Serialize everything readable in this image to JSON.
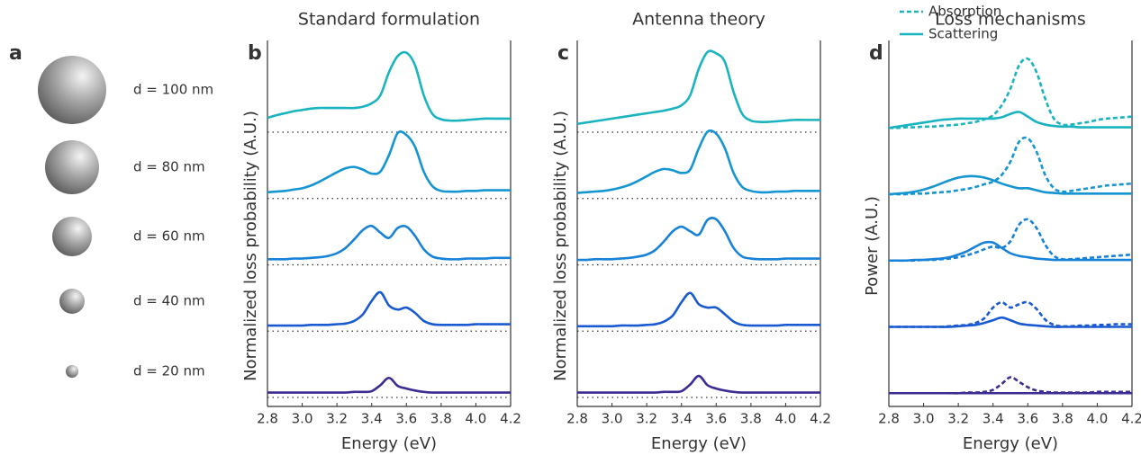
{
  "spheres": {
    "label": "a",
    "items": [
      "d = 100 nm",
      "d = 80 nm",
      "d = 60 nm",
      "d = 40 nm",
      "d = 20 nm"
    ]
  },
  "chart_data": [
    {
      "type": "line",
      "panel_label": "b",
      "title": "Standard formulation",
      "xlabel": "Energy (eV)",
      "ylabel": "Normalized loss probability (A.U.)",
      "xlim": [
        2.8,
        4.2
      ],
      "xticks": [
        2.8,
        {
          "value": 3,
          "label": "3.0"
        },
        3.2,
        3.4,
        3.6,
        3.8,
        {
          "value": 4,
          "label": "4.0"
        },
        4.2
      ],
      "dotted_baselines": true,
      "x": [
        2.8,
        2.85,
        2.9,
        2.95,
        3.0,
        3.05,
        3.1,
        3.15,
        3.2,
        3.25,
        3.3,
        3.35,
        3.4,
        3.45,
        3.5,
        3.55,
        3.6,
        3.65,
        3.7,
        3.75,
        3.8,
        3.85,
        3.9,
        3.95,
        4.0,
        4.05,
        4.1,
        4.15,
        4.2
      ],
      "series": [
        {
          "color": "#3b2d91",
          "dash": false,
          "values": [
            0.02,
            0.02,
            0.02,
            0.02,
            0.02,
            0.02,
            0.02,
            0.02,
            0.02,
            0.02,
            0.03,
            0.03,
            0.04,
            0.13,
            0.24,
            0.12,
            0.08,
            0.05,
            0.03,
            0.02,
            0.02,
            0.02,
            0.02,
            0.02,
            0.02,
            0.02,
            0.02,
            0.02,
            0.02
          ]
        },
        {
          "color": "#1a5ad1",
          "dash": false,
          "values": [
            0.03,
            0.03,
            0.03,
            0.03,
            0.03,
            0.04,
            0.04,
            0.04,
            0.05,
            0.06,
            0.1,
            0.2,
            0.4,
            0.53,
            0.33,
            0.27,
            0.3,
            0.22,
            0.1,
            0.05,
            0.04,
            0.04,
            0.04,
            0.04,
            0.05,
            0.05,
            0.05,
            0.05,
            0.05
          ]
        },
        {
          "color": "#1782d8",
          "dash": false,
          "values": [
            0.03,
            0.03,
            0.03,
            0.04,
            0.04,
            0.05,
            0.06,
            0.08,
            0.12,
            0.2,
            0.33,
            0.47,
            0.53,
            0.43,
            0.35,
            0.5,
            0.52,
            0.38,
            0.18,
            0.07,
            0.04,
            0.03,
            0.03,
            0.04,
            0.04,
            0.04,
            0.05,
            0.05,
            0.05
          ]
        },
        {
          "color": "#1595d1",
          "dash": false,
          "values": [
            0.04,
            0.05,
            0.06,
            0.08,
            0.1,
            0.14,
            0.2,
            0.27,
            0.34,
            0.4,
            0.42,
            0.38,
            0.32,
            0.35,
            0.6,
            0.93,
            0.9,
            0.72,
            0.35,
            0.13,
            0.06,
            0.05,
            0.05,
            0.06,
            0.06,
            0.07,
            0.07,
            0.07,
            0.07
          ]
        },
        {
          "color": "#19b4bf",
          "dash": false,
          "values": [
            0.16,
            0.2,
            0.23,
            0.26,
            0.28,
            0.3,
            0.31,
            0.31,
            0.31,
            0.31,
            0.31,
            0.33,
            0.38,
            0.5,
            0.85,
            1.09,
            1.14,
            0.95,
            0.5,
            0.22,
            0.14,
            0.12,
            0.12,
            0.13,
            0.14,
            0.15,
            0.15,
            0.15,
            0.15
          ]
        }
      ]
    },
    {
      "type": "line",
      "panel_label": "c",
      "title": "Antenna theory",
      "xlabel": "Energy (eV)",
      "ylabel": "Normalized loss probability (A.U.)",
      "xlim": [
        2.8,
        4.2
      ],
      "xticks": [
        2.8,
        {
          "value": 3,
          "label": "3.0"
        },
        3.2,
        3.4,
        3.6,
        3.8,
        {
          "value": 4,
          "label": "4.0"
        },
        4.2
      ],
      "dotted_baselines": true,
      "x": [
        2.8,
        2.85,
        2.9,
        2.95,
        3.0,
        3.05,
        3.1,
        3.15,
        3.2,
        3.25,
        3.3,
        3.35,
        3.4,
        3.45,
        3.5,
        3.55,
        3.6,
        3.65,
        3.7,
        3.75,
        3.8,
        3.85,
        3.9,
        3.95,
        4.0,
        4.05,
        4.1,
        4.15,
        4.2
      ],
      "series": [
        {
          "color": "#3b2d91",
          "dash": false,
          "values": [
            0.02,
            0.02,
            0.02,
            0.02,
            0.02,
            0.02,
            0.02,
            0.02,
            0.02,
            0.02,
            0.03,
            0.03,
            0.04,
            0.14,
            0.27,
            0.13,
            0.08,
            0.05,
            0.03,
            0.02,
            0.02,
            0.02,
            0.02,
            0.02,
            0.02,
            0.02,
            0.02,
            0.02,
            0.02
          ]
        },
        {
          "color": "#1a5ad1",
          "dash": false,
          "values": [
            0.02,
            0.02,
            0.02,
            0.02,
            0.02,
            0.03,
            0.03,
            0.03,
            0.04,
            0.05,
            0.09,
            0.18,
            0.38,
            0.52,
            0.35,
            0.3,
            0.3,
            0.2,
            0.09,
            0.04,
            0.03,
            0.03,
            0.03,
            0.03,
            0.04,
            0.04,
            0.04,
            0.04,
            0.04
          ]
        },
        {
          "color": "#1782d8",
          "dash": false,
          "values": [
            0.02,
            0.02,
            0.03,
            0.03,
            0.03,
            0.04,
            0.05,
            0.07,
            0.1,
            0.17,
            0.3,
            0.45,
            0.52,
            0.45,
            0.4,
            0.62,
            0.63,
            0.45,
            0.2,
            0.07,
            0.04,
            0.03,
            0.03,
            0.03,
            0.04,
            0.04,
            0.04,
            0.04,
            0.04
          ]
        },
        {
          "color": "#1595d1",
          "dash": false,
          "values": [
            0.03,
            0.04,
            0.05,
            0.06,
            0.08,
            0.11,
            0.15,
            0.21,
            0.28,
            0.35,
            0.39,
            0.37,
            0.33,
            0.38,
            0.7,
            0.95,
            0.92,
            0.7,
            0.33,
            0.12,
            0.06,
            0.04,
            0.04,
            0.05,
            0.05,
            0.06,
            0.06,
            0.06,
            0.06
          ]
        },
        {
          "color": "#19b4bf",
          "dash": false,
          "values": [
            0.07,
            0.09,
            0.11,
            0.13,
            0.15,
            0.17,
            0.19,
            0.21,
            0.23,
            0.25,
            0.27,
            0.3,
            0.35,
            0.5,
            0.9,
            1.15,
            1.13,
            1.0,
            0.55,
            0.22,
            0.12,
            0.1,
            0.1,
            0.11,
            0.12,
            0.13,
            0.13,
            0.13,
            0.13
          ]
        }
      ]
    },
    {
      "type": "line",
      "panel_label": "d",
      "title": "Loss mechanisms",
      "xlabel": "Energy (eV)",
      "ylabel": "Power (A.U.)",
      "xlim": [
        2.8,
        4.2
      ],
      "xticks": [
        2.8,
        {
          "value": 3,
          "label": "3.0"
        },
        3.2,
        3.4,
        3.6,
        3.8,
        {
          "value": 4,
          "label": "4.0"
        },
        4.2
      ],
      "dotted_baselines": false,
      "legend": [
        {
          "name": "Absorption",
          "color": "#19b4bf",
          "dash": true
        },
        {
          "name": "Scattering",
          "color": "#19b4bf",
          "dash": false
        }
      ],
      "x": [
        2.8,
        2.85,
        2.9,
        2.95,
        3.0,
        3.05,
        3.1,
        3.15,
        3.2,
        3.25,
        3.3,
        3.35,
        3.4,
        3.45,
        3.5,
        3.55,
        3.6,
        3.65,
        3.7,
        3.75,
        3.8,
        3.85,
        3.9,
        3.95,
        4.0,
        4.05,
        4.1,
        4.15,
        4.2
      ],
      "series": [
        {
          "color": "#3b2d91",
          "dash": true,
          "values": [
            0.01,
            0.01,
            0.01,
            0.01,
            0.01,
            0.01,
            0.01,
            0.01,
            0.01,
            0.02,
            0.02,
            0.03,
            0.06,
            0.15,
            0.25,
            0.18,
            0.1,
            0.05,
            0.03,
            0.02,
            0.02,
            0.02,
            0.02,
            0.02,
            0.03,
            0.03,
            0.03,
            0.03,
            0.03
          ]
        },
        {
          "color": "#1a5ad1",
          "dash": true,
          "values": [
            0.01,
            0.01,
            0.01,
            0.01,
            0.01,
            0.01,
            0.01,
            0.02,
            0.03,
            0.04,
            0.07,
            0.14,
            0.3,
            0.38,
            0.3,
            0.35,
            0.38,
            0.28,
            0.12,
            0.04,
            0.02,
            0.02,
            0.03,
            0.03,
            0.04,
            0.04,
            0.05,
            0.05,
            0.05
          ]
        },
        {
          "color": "#1782d8",
          "dash": true,
          "values": [
            0.01,
            0.01,
            0.01,
            0.01,
            0.02,
            0.02,
            0.03,
            0.04,
            0.06,
            0.09,
            0.13,
            0.18,
            0.22,
            0.2,
            0.3,
            0.55,
            0.63,
            0.5,
            0.25,
            0.08,
            0.03,
            0.03,
            0.04,
            0.05,
            0.06,
            0.07,
            0.08,
            0.09,
            0.1
          ]
        },
        {
          "color": "#1595d1",
          "dash": true,
          "values": [
            0.01,
            0.01,
            0.01,
            0.02,
            0.02,
            0.03,
            0.04,
            0.05,
            0.07,
            0.09,
            0.12,
            0.16,
            0.2,
            0.3,
            0.5,
            0.8,
            0.85,
            0.65,
            0.3,
            0.1,
            0.05,
            0.06,
            0.08,
            0.1,
            0.12,
            0.14,
            0.15,
            0.16,
            0.17
          ]
        },
        {
          "color": "#19b4bf",
          "dash": true,
          "values": [
            0.01,
            0.01,
            0.02,
            0.02,
            0.03,
            0.03,
            0.04,
            0.05,
            0.06,
            0.08,
            0.1,
            0.14,
            0.2,
            0.35,
            0.6,
            0.95,
            1.05,
            0.85,
            0.45,
            0.15,
            0.06,
            0.06,
            0.08,
            0.1,
            0.13,
            0.15,
            0.16,
            0.17,
            0.18
          ]
        },
        {
          "color": "#3b2d91",
          "dash": false,
          "values": [
            0.01,
            0.01,
            0.01,
            0.01,
            0.01,
            0.01,
            0.01,
            0.01,
            0.01,
            0.01,
            0.01,
            0.01,
            0.01,
            0.01,
            0.01,
            0.01,
            0.01,
            0.01,
            0.01,
            0.01,
            0.01,
            0.01,
            0.01,
            0.01,
            0.01,
            0.01,
            0.01,
            0.01,
            0.01
          ]
        },
        {
          "color": "#1a5ad1",
          "dash": false,
          "values": [
            0.01,
            0.01,
            0.01,
            0.01,
            0.01,
            0.01,
            0.01,
            0.01,
            0.02,
            0.03,
            0.04,
            0.07,
            0.11,
            0.15,
            0.11,
            0.06,
            0.04,
            0.03,
            0.02,
            0.01,
            0.01,
            0.01,
            0.01,
            0.01,
            0.01,
            0.01,
            0.01,
            0.01,
            0.01
          ]
        },
        {
          "color": "#1782d8",
          "dash": false,
          "values": [
            0.01,
            0.01,
            0.01,
            0.02,
            0.02,
            0.03,
            0.04,
            0.06,
            0.1,
            0.15,
            0.22,
            0.28,
            0.28,
            0.2,
            0.12,
            0.08,
            0.06,
            0.04,
            0.03,
            0.02,
            0.02,
            0.02,
            0.02,
            0.02,
            0.02,
            0.02,
            0.02,
            0.02,
            0.02
          ]
        },
        {
          "color": "#1595d1",
          "dash": false,
          "values": [
            0.01,
            0.02,
            0.03,
            0.05,
            0.08,
            0.12,
            0.17,
            0.22,
            0.26,
            0.28,
            0.28,
            0.26,
            0.22,
            0.17,
            0.13,
            0.1,
            0.1,
            0.07,
            0.04,
            0.03,
            0.02,
            0.02,
            0.02,
            0.02,
            0.02,
            0.02,
            0.02,
            0.02,
            0.02
          ]
        },
        {
          "color": "#19b4bf",
          "dash": false,
          "values": [
            0.01,
            0.03,
            0.05,
            0.07,
            0.09,
            0.11,
            0.13,
            0.14,
            0.15,
            0.15,
            0.15,
            0.15,
            0.15,
            0.17,
            0.22,
            0.25,
            0.18,
            0.1,
            0.06,
            0.04,
            0.03,
            0.03,
            0.02,
            0.02,
            0.02,
            0.02,
            0.02,
            0.02,
            0.02
          ]
        }
      ]
    }
  ]
}
